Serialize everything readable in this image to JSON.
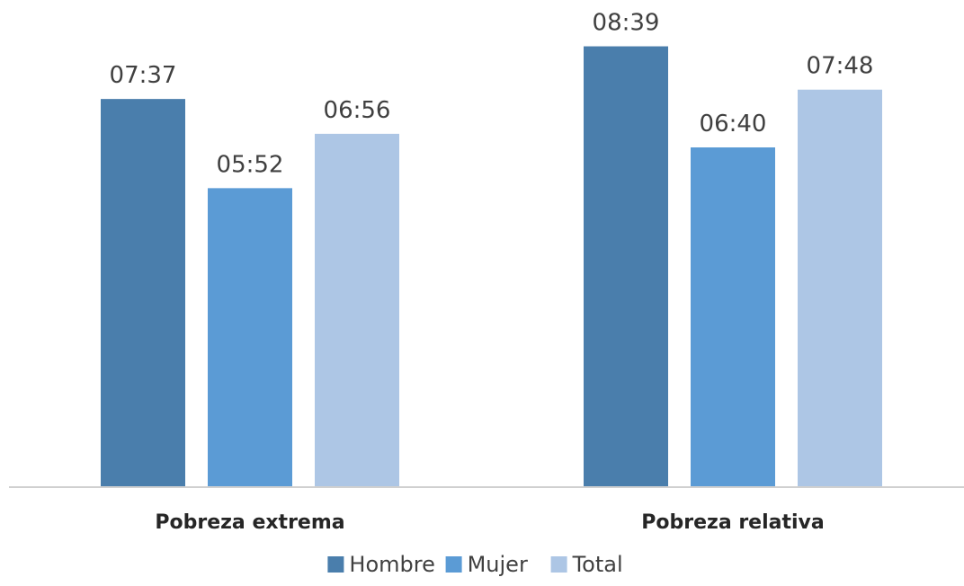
{
  "chart_data": {
    "type": "bar",
    "categories": [
      "Pobreza extrema",
      "Pobreza relativa"
    ],
    "series": [
      {
        "name": "Hombre",
        "color": "#4a7eac",
        "values": [
          7.6167,
          8.65
        ],
        "labels": [
          "07:37",
          "08:39"
        ]
      },
      {
        "name": "Mujer",
        "color": "#5b9bd5",
        "values": [
          5.8667,
          6.6667
        ],
        "labels": [
          "05:52",
          "06:40"
        ]
      },
      {
        "name": "Total",
        "color": "#adc6e5",
        "values": [
          6.9333,
          7.8
        ],
        "labels": [
          "06:56",
          "07:48"
        ]
      }
    ],
    "title": "",
    "xlabel": "",
    "ylabel": "",
    "ylim": [
      0,
      9
    ],
    "grid": false,
    "legend": "bottom"
  }
}
